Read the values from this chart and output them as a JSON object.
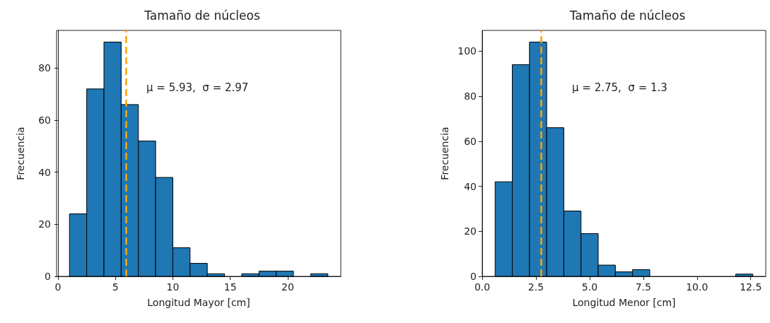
{
  "chart_data": [
    {
      "type": "histogram",
      "title": "Tamaño de núcleos",
      "xlabel": "Longitud Mayor [cm]",
      "ylabel": "Frecuencia",
      "color": "#1f77b4",
      "bins": [
        1,
        2.5,
        4,
        5.5,
        7,
        8.5,
        10,
        11.5,
        13,
        14.5,
        16,
        17.5,
        19,
        20.5,
        22,
        23.5
      ],
      "values": [
        24,
        72,
        90,
        66,
        52,
        38,
        11,
        5,
        1,
        0,
        1,
        2,
        2,
        0,
        1
      ],
      "xlim": [
        -0.125,
        24.625
      ],
      "xticks": [
        0,
        5,
        10,
        15,
        20
      ],
      "ylim": [
        0,
        94.5
      ],
      "yticks": [
        0,
        20,
        40,
        60,
        80
      ],
      "ref_lines": [
        {
          "axis": "x",
          "value": 5.93,
          "color": "#ffa500",
          "line_style": "dashed"
        }
      ],
      "annotations": [
        "μ = 5.93,  σ = 2.97"
      ]
    },
    {
      "type": "histogram",
      "title": "Tamaño de núcleos",
      "xlabel": "Longitud Menor [cm]",
      "ylabel": "Frecuencia",
      "color": "#1f77b4",
      "bins": [
        0.6,
        1.4,
        2.2,
        3.0,
        3.8,
        4.6,
        5.4,
        6.2,
        7.0,
        7.8,
        8.6,
        9.4,
        10.2,
        11.0,
        11.8,
        12.6
      ],
      "values": [
        42,
        94,
        104,
        66,
        29,
        19,
        5,
        2,
        3,
        0,
        0,
        0,
        0,
        0,
        1
      ],
      "xlim": [
        0,
        13.2
      ],
      "xticks": [
        {
          "value": 0,
          "label": "0.0"
        },
        {
          "value": 2.5,
          "label": "2.5"
        },
        {
          "value": 5,
          "label": "5.0"
        },
        {
          "value": 7.5,
          "label": "7.5"
        },
        {
          "value": 10,
          "label": "10.0"
        },
        {
          "value": 12.5,
          "label": "12.5"
        }
      ],
      "ylim": [
        0,
        109.2
      ],
      "yticks": [
        0,
        20,
        40,
        60,
        80,
        100
      ],
      "ref_lines": [
        {
          "axis": "x",
          "value": 2.75,
          "color": "#ffa500",
          "line_style": "dashed"
        }
      ],
      "annotations": [
        "μ = 2.75,  σ = 1.3"
      ]
    }
  ]
}
